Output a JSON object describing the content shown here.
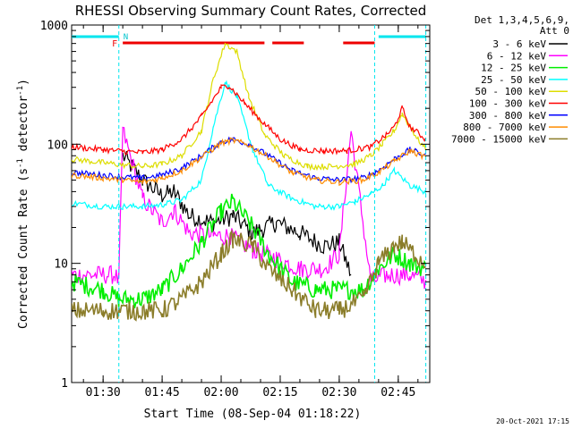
{
  "chart_data": {
    "type": "line",
    "title": "RHESSI Observing Summary Count Rates, Corrected",
    "xlabel": "Start Time (08-Sep-04 01:18:22)",
    "ylabel_main": "Corrected Count Rate (s",
    "ylabel_sup1": "-1",
    "ylabel_mid": " detector",
    "ylabel_sup2": "-1",
    "ylabel_end": ")",
    "y_scale": "log",
    "ylim": [
      1,
      1000
    ],
    "xlim": [
      "01:22",
      "02:53"
    ],
    "x_ticks": [
      "01:30",
      "01:45",
      "02:00",
      "02:15",
      "02:30",
      "02:45"
    ],
    "y_ticks": [
      "1",
      "10",
      "100",
      "1000"
    ],
    "legend_header": [
      "Det 1,3,4,5,6,9,",
      "Att 0"
    ],
    "legend_placement": "right",
    "footer_timestamp": "20-Oct-2021 17:15",
    "flags": {
      "eclipse_label": "N",
      "flare_label": "F",
      "night_segments": [
        [
          "01:22",
          "01:34"
        ],
        [
          "02:40",
          "02:52"
        ]
      ],
      "flare_segments": [
        [
          "01:35",
          "02:11"
        ],
        [
          "02:13",
          "02:21"
        ],
        [
          "02:31",
          "02:39"
        ]
      ],
      "vlines": [
        "01:34",
        "02:39",
        "02:52"
      ]
    },
    "series": [
      {
        "name": "3 - 6 keV",
        "color": "#000000",
        "x": [
          "01:22",
          "01:33",
          "01:35",
          "01:40",
          "01:45",
          "01:48",
          "01:52",
          "01:58",
          "02:03",
          "02:08",
          "02:14",
          "02:20",
          "02:26",
          "02:30",
          "02:33"
        ],
        "values": [
          null,
          null,
          80,
          50,
          37,
          40,
          25,
          22,
          25,
          18,
          22,
          18,
          14,
          15,
          8
        ]
      },
      {
        "name": "6 - 12 keV",
        "color": "#ff00ff",
        "x": [
          "01:22",
          "01:33",
          "01:34",
          "01:35",
          "01:40",
          "01:45",
          "01:48",
          "01:52",
          "01:58",
          "02:02",
          "02:08",
          "02:14",
          "02:20",
          "02:26",
          "02:30",
          "02:33",
          "02:38",
          "02:42",
          "02:48",
          "02:52"
        ],
        "values": [
          8,
          8,
          7,
          130,
          35,
          22,
          28,
          18,
          17,
          17,
          13,
          11,
          9,
          9,
          12,
          130,
          7,
          8,
          8,
          7
        ]
      },
      {
        "name": "12 - 25 keV",
        "color": "#00ee00",
        "x": [
          "01:22",
          "01:30",
          "01:34",
          "01:40",
          "01:45",
          "01:50",
          "01:55",
          "02:00",
          "02:03",
          "02:08",
          "02:12",
          "02:18",
          "02:24",
          "02:30",
          "02:36",
          "02:40",
          "02:44",
          "02:48",
          "02:52"
        ],
        "values": [
          7,
          6,
          5,
          5,
          6,
          9,
          15,
          27,
          33,
          20,
          12,
          7,
          6,
          6,
          6,
          9,
          12,
          10,
          9
        ]
      },
      {
        "name": "25 - 50 keV",
        "color": "#00ffff",
        "x": [
          "01:22",
          "01:30",
          "01:35",
          "01:40",
          "01:45",
          "01:50",
          "01:55",
          "01:58",
          "02:01",
          "02:04",
          "02:08",
          "02:12",
          "02:18",
          "02:24",
          "02:30",
          "02:34",
          "02:38",
          "02:41",
          "02:44",
          "02:48",
          "02:52"
        ],
        "values": [
          32,
          30,
          30,
          30,
          31,
          34,
          50,
          140,
          330,
          250,
          90,
          45,
          35,
          30,
          30,
          33,
          38,
          45,
          60,
          45,
          40
        ]
      },
      {
        "name": "50 - 100 keV",
        "color": "#dddd00",
        "x": [
          "01:22",
          "01:30",
          "01:35",
          "01:40",
          "01:45",
          "01:50",
          "01:55",
          "01:58",
          "02:01",
          "02:04",
          "02:07",
          "02:11",
          "02:16",
          "02:22",
          "02:28",
          "02:34",
          "02:38",
          "02:41",
          "02:44",
          "02:46",
          "02:50",
          "02:52"
        ],
        "values": [
          75,
          70,
          67,
          65,
          68,
          80,
          130,
          350,
          700,
          600,
          250,
          120,
          80,
          65,
          65,
          68,
          80,
          100,
          130,
          180,
          110,
          90
        ]
      },
      {
        "name": "100 - 300 keV",
        "color": "#ff0000",
        "x": [
          "01:22",
          "01:30",
          "01:35",
          "01:40",
          "01:45",
          "01:50",
          "01:55",
          "02:00",
          "02:02",
          "02:06",
          "02:10",
          "02:15",
          "02:20",
          "02:26",
          "02:32",
          "02:38",
          "02:42",
          "02:44",
          "02:46",
          "02:48",
          "02:52"
        ],
        "values": [
          95,
          90,
          87,
          85,
          90,
          110,
          170,
          300,
          310,
          220,
          160,
          110,
          90,
          88,
          88,
          95,
          120,
          140,
          200,
          140,
          110
        ]
      },
      {
        "name": "300 - 800 keV",
        "color": "#0000ff",
        "x": [
          "01:22",
          "01:30",
          "01:35",
          "01:40",
          "01:45",
          "01:50",
          "01:55",
          "02:00",
          "02:03",
          "02:07",
          "02:12",
          "02:18",
          "02:24",
          "02:30",
          "02:36",
          "02:40",
          "02:44",
          "02:48",
          "02:52"
        ],
        "values": [
          58,
          55,
          53,
          52,
          55,
          63,
          80,
          105,
          110,
          100,
          80,
          60,
          52,
          50,
          52,
          60,
          75,
          90,
          80
        ]
      },
      {
        "name": "800 - 7000 keV",
        "color": "#ff8c00",
        "x": [
          "01:22",
          "01:30",
          "01:35",
          "01:40",
          "01:45",
          "01:50",
          "01:55",
          "02:00",
          "02:03",
          "02:07",
          "02:12",
          "02:18",
          "02:24",
          "02:30",
          "02:36",
          "02:40",
          "02:44",
          "02:48",
          "02:52"
        ],
        "values": [
          55,
          52,
          50,
          48,
          52,
          60,
          78,
          102,
          108,
          98,
          78,
          58,
          50,
          48,
          50,
          58,
          72,
          88,
          78
        ]
      },
      {
        "name": "7000 - 15000 keV",
        "color": "#8b7d2a",
        "x": [
          "01:22",
          "01:30",
          "01:34",
          "01:40",
          "01:45",
          "01:50",
          "01:55",
          "02:00",
          "02:03",
          "02:08",
          "02:12",
          "02:18",
          "02:24",
          "02:30",
          "02:36",
          "02:40",
          "02:44",
          "02:46",
          "02:48",
          "02:52"
        ],
        "values": [
          4,
          4,
          4,
          4,
          4,
          5,
          7,
          12,
          16,
          14,
          9,
          6,
          4,
          4,
          5,
          10,
          14,
          15,
          13,
          10
        ]
      }
    ]
  }
}
